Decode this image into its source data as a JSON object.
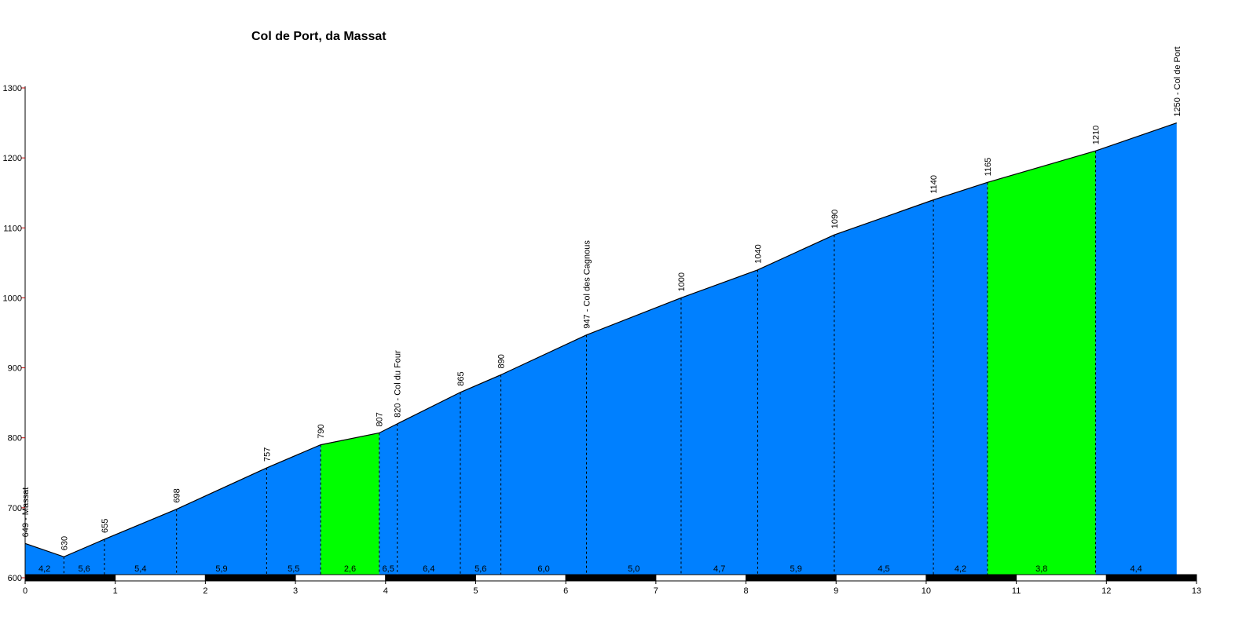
{
  "chart_data": {
    "type": "area",
    "title": "Col de Port, da Massat",
    "xlabel": "",
    "ylabel": "",
    "xlim": [
      0,
      13
    ],
    "ylim": [
      600,
      1300
    ],
    "x_ticks": [
      0,
      1,
      2,
      3,
      4,
      5,
      6,
      7,
      8,
      9,
      10,
      11,
      12,
      13
    ],
    "y_ticks": [
      600,
      700,
      800,
      900,
      1000,
      1100,
      1200,
      1300
    ],
    "grid": false,
    "profile": [
      {
        "km": 0.0,
        "alt": 649,
        "label": "649 - Massat"
      },
      {
        "km": 0.43,
        "alt": 630,
        "label": "630"
      },
      {
        "km": 0.88,
        "alt": 655,
        "label": "655"
      },
      {
        "km": 1.68,
        "alt": 698,
        "label": "698"
      },
      {
        "km": 2.68,
        "alt": 757,
        "label": "757"
      },
      {
        "km": 3.28,
        "alt": 790,
        "label": "790"
      },
      {
        "km": 3.93,
        "alt": 807,
        "label": "807"
      },
      {
        "km": 4.13,
        "alt": 820,
        "label": "820 - Col du Four"
      },
      {
        "km": 4.83,
        "alt": 865,
        "label": "865"
      },
      {
        "km": 5.28,
        "alt": 890,
        "label": "890"
      },
      {
        "km": 6.23,
        "alt": 947,
        "label": "947 - Col des Cagnous"
      },
      {
        "km": 7.28,
        "alt": 1000,
        "label": "1000"
      },
      {
        "km": 8.13,
        "alt": 1040,
        "label": "1040"
      },
      {
        "km": 8.98,
        "alt": 1090,
        "label": "1090"
      },
      {
        "km": 10.08,
        "alt": 1140,
        "label": "1140"
      },
      {
        "km": 10.68,
        "alt": 1165,
        "label": "1165"
      },
      {
        "km": 11.88,
        "alt": 1210,
        "label": "1210"
      },
      {
        "km": 12.78,
        "alt": 1250,
        "label": "1250 - Col de Port"
      }
    ],
    "segments": [
      {
        "gradient": "4,2",
        "color": "#0080ff"
      },
      {
        "gradient": "5,6",
        "color": "#0080ff"
      },
      {
        "gradient": "5,4",
        "color": "#0080ff"
      },
      {
        "gradient": "5,9",
        "color": "#0080ff"
      },
      {
        "gradient": "5,5",
        "color": "#0080ff"
      },
      {
        "gradient": "2,6",
        "color": "#00ff00"
      },
      {
        "gradient": "6,5",
        "color": "#0080ff"
      },
      {
        "gradient": "6,4",
        "color": "#0080ff"
      },
      {
        "gradient": "5,6",
        "color": "#0080ff"
      },
      {
        "gradient": "6,0",
        "color": "#0080ff"
      },
      {
        "gradient": "5,0",
        "color": "#0080ff"
      },
      {
        "gradient": "4,7",
        "color": "#0080ff"
      },
      {
        "gradient": "5,9",
        "color": "#0080ff"
      },
      {
        "gradient": "4,5",
        "color": "#0080ff"
      },
      {
        "gradient": "4,2",
        "color": "#0080ff"
      },
      {
        "gradient": "3,8",
        "color": "#00ff00"
      },
      {
        "gradient": "4,4",
        "color": "#0080ff"
      }
    ],
    "colors": {
      "climb": "#0080ff",
      "easy": "#00ff00",
      "axis_tick": "#c00000"
    }
  }
}
